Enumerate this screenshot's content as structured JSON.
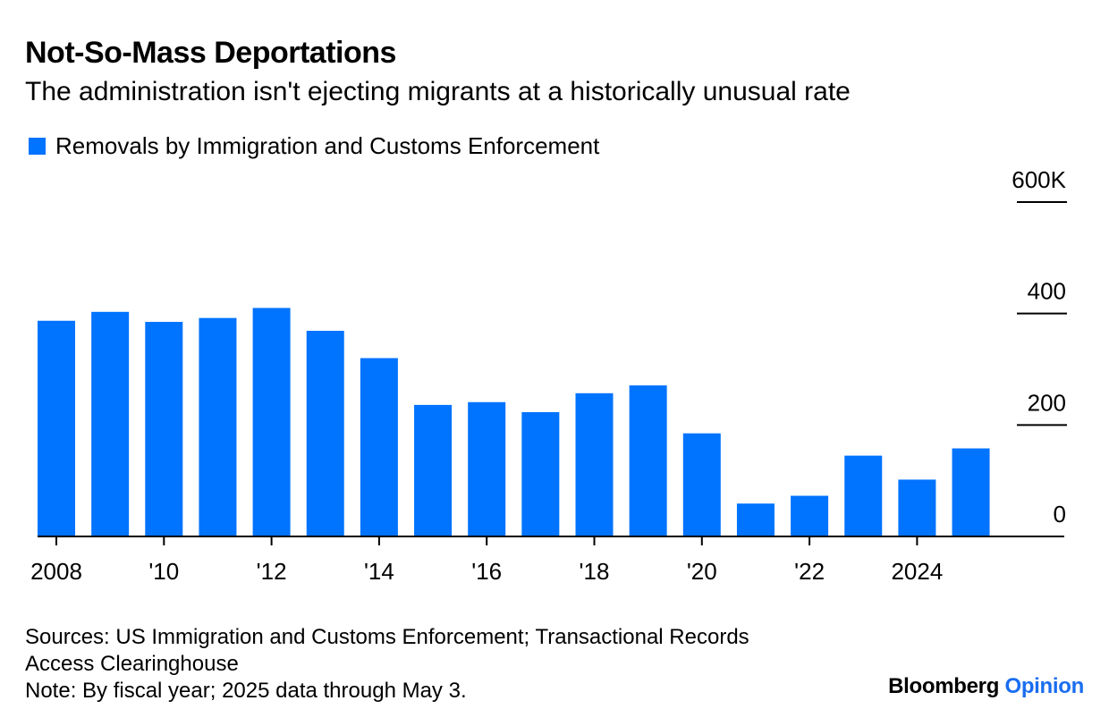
{
  "title": "Not-So-Mass Deportations",
  "subtitle": "The administration isn't ejecting migrants at a historically unusual rate",
  "legend": {
    "label": "Removals by Immigration and Customs Enforcement",
    "color": "#0073ff"
  },
  "footer": {
    "sources_line1": "Sources: US Immigration and Customs Enforcement; Transactional Records",
    "sources_line2": "Access Clearinghouse",
    "note": "Note: By fiscal year; 2025 data through May 3."
  },
  "brand": {
    "name": "Bloomberg",
    "accent": "Opinion",
    "accent_color": "#1a6df0"
  },
  "chart_data": {
    "type": "bar",
    "title": "Not-So-Mass Deportations",
    "subtitle": "The administration isn't ejecting migrants at a historically unusual rate",
    "xlabel": "",
    "ylabel": "",
    "categories": [
      "2008",
      "2009",
      "2010",
      "2011",
      "2012",
      "2013",
      "2014",
      "2015",
      "2016",
      "2017",
      "2018",
      "2019",
      "2020",
      "2021",
      "2022",
      "2023",
      "2024",
      "2025"
    ],
    "series": [
      {
        "name": "Removals by Immigration and Customs Enforcement",
        "color": "#0073ff",
        "values": [
          387,
          403,
          385,
          392,
          410,
          369,
          320,
          236,
          241,
          223,
          257,
          271,
          185,
          59,
          73,
          145,
          102,
          158
        ]
      }
    ],
    "ylim": [
      0,
      600
    ],
    "yticks": [
      0,
      200,
      400,
      600
    ],
    "ytick_labels": [
      "0",
      "200",
      "400",
      "600K"
    ],
    "xticks": [
      "2008",
      "2010",
      "2012",
      "2014",
      "2016",
      "2018",
      "2020",
      "2022",
      "2024"
    ],
    "xtick_labels": [
      "2008",
      "'10",
      "'12",
      "'14",
      "'16",
      "'18",
      "'20",
      "'22",
      "2024"
    ],
    "grid": false,
    "legend_position": "top-left"
  }
}
